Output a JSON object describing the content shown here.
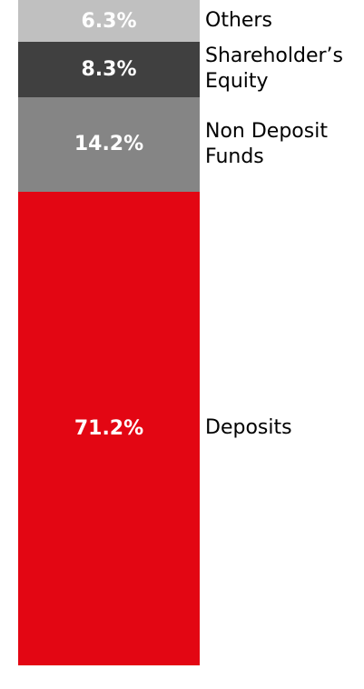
{
  "chart_data": {
    "type": "stacked_bar",
    "series": [
      {
        "name": "Deposits",
        "color": "#e30613",
        "values": [
          71.2
        ],
        "value_labels": [
          "71.2%"
        ]
      },
      {
        "name": "Non Deposit Funds",
        "color": "#858585",
        "values": [
          14.2
        ],
        "value_labels": [
          "14.2%"
        ]
      },
      {
        "name": "Shareholder’s Equity",
        "color": "#404040",
        "values": [
          8.3
        ],
        "value_labels": [
          "8.3%"
        ]
      },
      {
        "name": "Others",
        "color": "#c0c0c0",
        "values": [
          6.3
        ],
        "value_labels": [
          "6.3%"
        ]
      }
    ]
  }
}
